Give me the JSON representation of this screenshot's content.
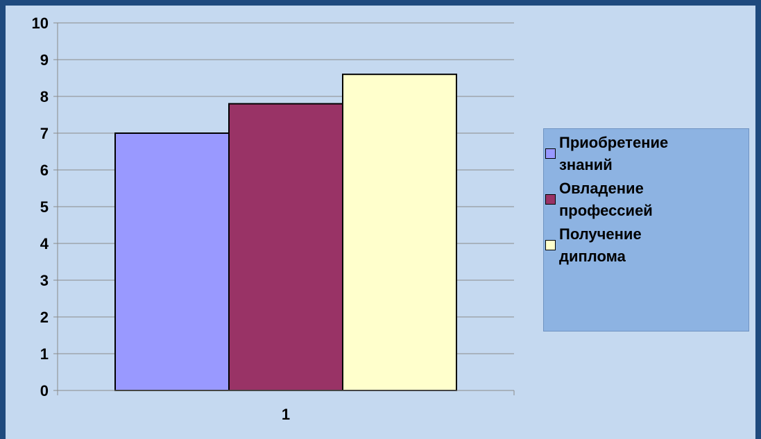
{
  "chart_data": {
    "type": "bar",
    "categories": [
      "1"
    ],
    "series": [
      {
        "name": "Приобретение знаний",
        "name_lines": [
          "Приобретение",
          "знаний"
        ],
        "values": [
          7
        ],
        "color": "#9999ff"
      },
      {
        "name": "Овладение профессией",
        "name_lines": [
          "Овладение",
          "профессией"
        ],
        "values": [
          7.8
        ],
        "color": "#993366"
      },
      {
        "name": "Получение диплома",
        "name_lines": [
          "Получение",
          "диплома"
        ],
        "values": [
          8.6
        ],
        "color": "#ffffcc"
      }
    ],
    "ylim": [
      0,
      10
    ],
    "yticks": [
      "0",
      "1",
      "2",
      "3",
      "4",
      "5",
      "6",
      "7",
      "8",
      "9",
      "10"
    ],
    "grid": true,
    "legend": "right",
    "background": "#c5d9f0",
    "legend_background": "#8db3e2"
  }
}
